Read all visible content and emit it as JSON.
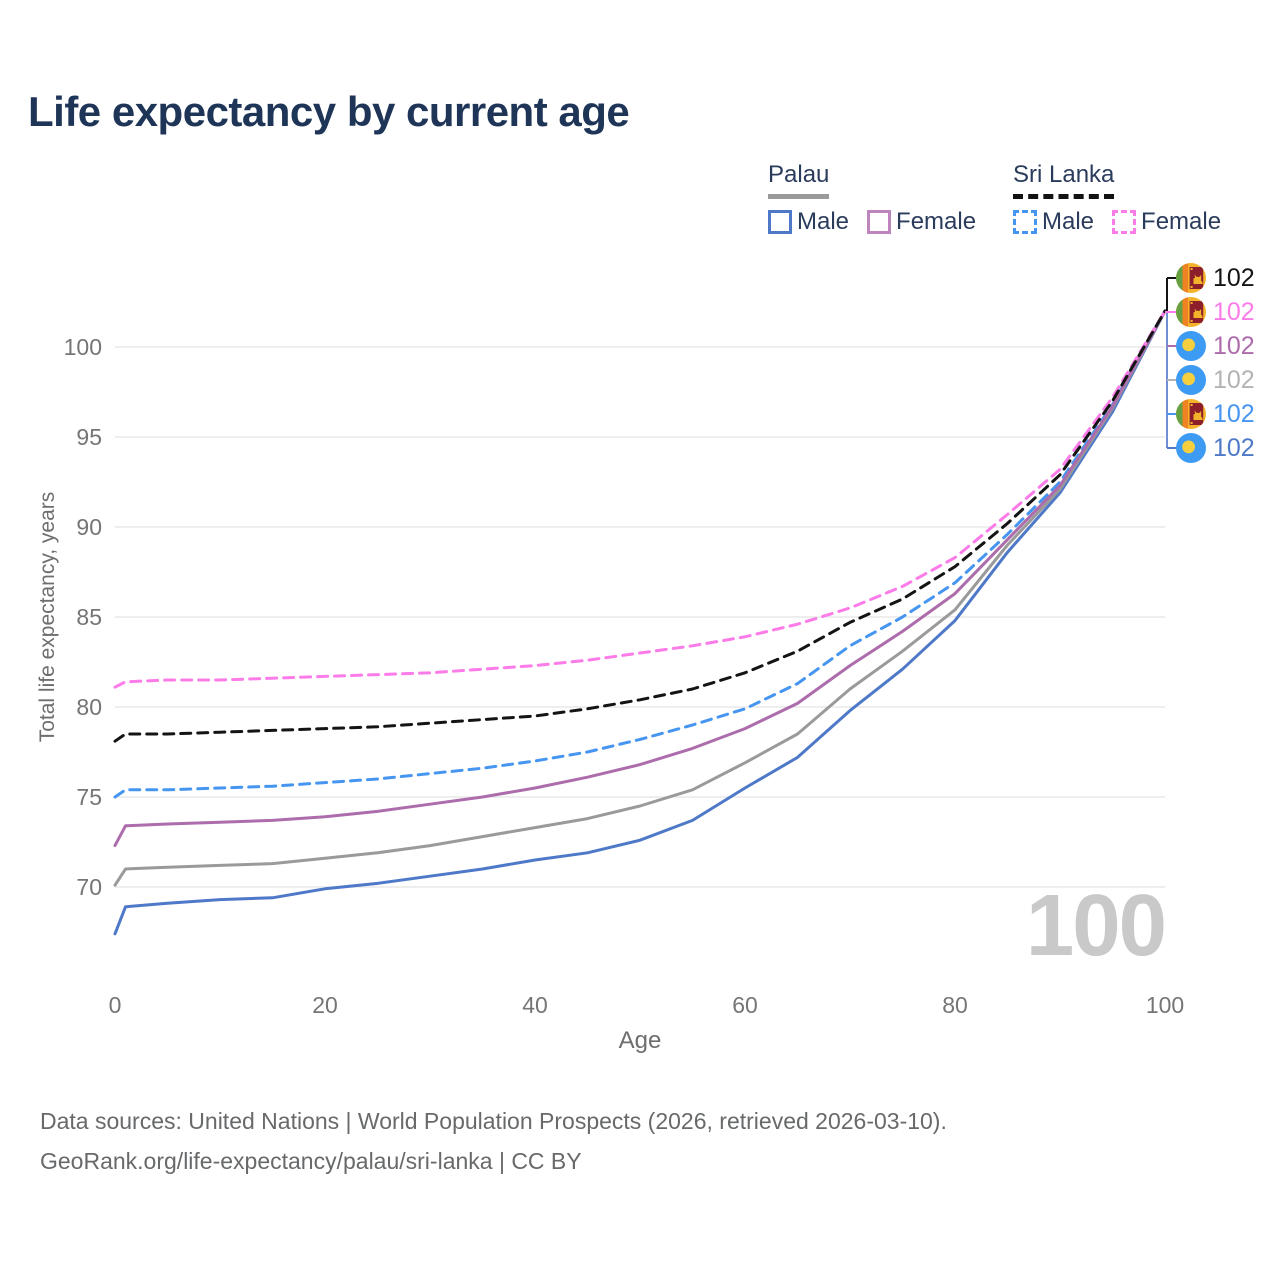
{
  "title": "Life expectancy by current age",
  "legend": {
    "groups": [
      {
        "country": "Palau",
        "line_style": "solid",
        "items": [
          {
            "label": "Male",
            "color": "#4e79c8"
          },
          {
            "label": "Female",
            "color": "#bd85bc"
          }
        ]
      },
      {
        "country": "Sri Lanka",
        "line_style": "dashed",
        "items": [
          {
            "label": "Male",
            "color": "#4695f0"
          },
          {
            "label": "Female",
            "color": "#fb7ce8"
          }
        ]
      }
    ]
  },
  "age_indicator": "100",
  "footer": {
    "line1": "Data sources: United Nations | World Population Prospects (2026, retrieved 2026-03-10).",
    "line2": "GeoRank.org/life-expectancy/palau/sri-lanka | CC BY"
  },
  "chart_data": {
    "type": "line",
    "title": "Life expectancy by current age",
    "xlabel": "Age",
    "ylabel": "Total life expectancy, years",
    "xlim": [
      0,
      100
    ],
    "ylim": [
      66,
      103
    ],
    "grid": "horizontal",
    "legend_position": "top-right",
    "x_ticks": [
      0,
      20,
      40,
      60,
      80,
      100
    ],
    "y_ticks": [
      70,
      75,
      80,
      85,
      90,
      95,
      100
    ],
    "x": [
      0,
      1,
      5,
      10,
      15,
      20,
      25,
      30,
      35,
      40,
      45,
      50,
      55,
      60,
      65,
      70,
      75,
      80,
      85,
      90,
      95,
      100
    ],
    "series": [
      {
        "name": "Sri Lanka — Both sexes",
        "country": "Sri Lanka",
        "sex": "both",
        "color": "#141414",
        "dash": true,
        "flag": "sri-lanka",
        "end_label": "102",
        "label_color": "#141414",
        "values": [
          78.1,
          78.5,
          78.5,
          78.6,
          78.7,
          78.8,
          78.9,
          79.1,
          79.3,
          79.5,
          79.9,
          80.4,
          81.0,
          81.9,
          83.1,
          84.7,
          86.0,
          87.8,
          90.2,
          92.9,
          97.0,
          102
        ]
      },
      {
        "name": "Sri Lanka — Female",
        "country": "Sri Lanka",
        "sex": "female",
        "color": "#fb7ce8",
        "dash": true,
        "flag": "sri-lanka",
        "end_label": "102",
        "label_color": "#fb7ce8",
        "values": [
          81.1,
          81.4,
          81.5,
          81.5,
          81.6,
          81.7,
          81.8,
          81.9,
          82.1,
          82.3,
          82.6,
          83.0,
          83.4,
          83.9,
          84.6,
          85.5,
          86.7,
          88.3,
          90.7,
          93.2,
          97.2,
          102
        ]
      },
      {
        "name": "Palau — Female",
        "country": "Palau",
        "sex": "female",
        "color": "#ad6cab",
        "dash": false,
        "flag": "palau",
        "end_label": "102",
        "label_color": "#ad6cab",
        "values": [
          72.3,
          73.4,
          73.5,
          73.6,
          73.7,
          73.9,
          74.2,
          74.6,
          75.0,
          75.5,
          76.1,
          76.8,
          77.7,
          78.8,
          80.2,
          82.3,
          84.2,
          86.3,
          89.3,
          92.3,
          96.7,
          102
        ]
      },
      {
        "name": "Palau — Both sexes",
        "country": "Palau",
        "sex": "both",
        "color": "#9a9a9a",
        "dash": false,
        "flag": "palau",
        "end_label": "102",
        "label_color": "#b3b3b3",
        "values": [
          70.1,
          71.0,
          71.1,
          71.2,
          71.3,
          71.6,
          71.9,
          72.3,
          72.8,
          73.3,
          73.8,
          74.5,
          75.4,
          76.9,
          78.5,
          81.0,
          83.1,
          85.4,
          89.0,
          92.1,
          96.6,
          102
        ]
      },
      {
        "name": "Sri Lanka — Male",
        "country": "Sri Lanka",
        "sex": "male",
        "color": "#4695f0",
        "dash": true,
        "flag": "sri-lanka",
        "end_label": "102",
        "label_color": "#4695f0",
        "values": [
          75.0,
          75.4,
          75.4,
          75.5,
          75.6,
          75.8,
          76.0,
          76.3,
          76.6,
          77.0,
          77.5,
          78.2,
          79.0,
          79.9,
          81.3,
          83.4,
          85.0,
          86.9,
          89.6,
          92.5,
          96.8,
          102
        ]
      },
      {
        "name": "Palau — Male",
        "country": "Palau",
        "sex": "male",
        "color": "#4e79c8",
        "dash": false,
        "flag": "palau",
        "end_label": "102",
        "label_color": "#4e79c8",
        "values": [
          67.4,
          68.9,
          69.1,
          69.3,
          69.4,
          69.9,
          70.2,
          70.6,
          71.0,
          71.5,
          71.9,
          72.6,
          73.7,
          75.5,
          77.2,
          79.8,
          82.1,
          84.8,
          88.6,
          91.9,
          96.4,
          102
        ]
      }
    ]
  }
}
